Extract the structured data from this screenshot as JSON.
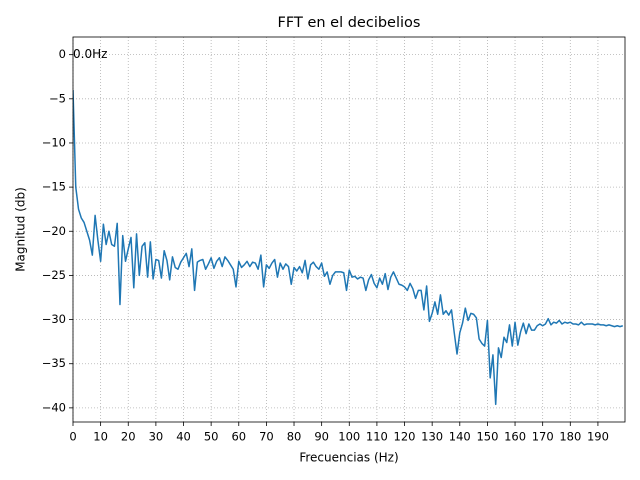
{
  "chart_data": {
    "type": "line",
    "title": "FFT en el decibelios",
    "xlabel": "Frecuencias (Hz)",
    "ylabel": "Magnitud (db)",
    "annotation": {
      "text": "0.0Hz",
      "x": 0,
      "y": 0
    },
    "grid": true,
    "xlim": [
      0,
      199.8
    ],
    "ylim": [
      -41.6,
      2.0
    ],
    "xticks": [
      0,
      10,
      20,
      30,
      40,
      50,
      60,
      70,
      80,
      90,
      100,
      110,
      120,
      130,
      140,
      150,
      160,
      170,
      180,
      190
    ],
    "yticks": [
      0,
      {
        "value": -5,
        "label": "−5"
      },
      {
        "value": -10,
        "label": "−10"
      },
      {
        "value": -15,
        "label": "−15"
      },
      {
        "value": -20,
        "label": "−20"
      },
      {
        "value": -25,
        "label": "−25"
      },
      {
        "value": -30,
        "label": "−30"
      },
      {
        "value": -35,
        "label": "−35"
      },
      {
        "value": -40,
        "label": "−40"
      }
    ],
    "x": [
      0,
      1,
      2,
      3,
      4,
      5,
      6,
      7,
      8,
      9,
      10,
      11,
      12,
      13,
      14,
      15,
      16,
      17,
      18,
      19,
      20,
      21,
      22,
      23,
      24,
      25,
      26,
      27,
      28,
      29,
      30,
      31,
      32,
      33,
      34,
      35,
      36,
      37,
      38,
      39,
      40,
      41,
      42,
      43,
      44,
      45,
      46,
      47,
      48,
      49,
      50,
      51,
      52,
      53,
      54,
      55,
      56,
      57,
      58,
      59,
      60,
      61,
      62,
      63,
      64,
      65,
      66,
      67,
      68,
      69,
      70,
      71,
      72,
      73,
      74,
      75,
      76,
      77,
      78,
      79,
      80,
      81,
      82,
      83,
      84,
      85,
      86,
      87,
      88,
      89,
      90,
      91,
      92,
      93,
      94,
      95,
      96,
      97,
      98,
      99,
      100,
      101,
      102,
      103,
      104,
      105,
      106,
      107,
      108,
      109,
      110,
      111,
      112,
      113,
      114,
      115,
      116,
      117,
      118,
      119,
      120,
      121,
      122,
      123,
      124,
      125,
      126,
      127,
      128,
      129,
      130,
      131,
      132,
      133,
      134,
      135,
      136,
      137,
      138,
      139,
      140,
      141,
      142,
      143,
      144,
      145,
      146,
      147,
      148,
      149,
      150,
      151,
      152,
      153,
      154,
      155,
      156,
      157,
      158,
      159,
      160,
      161,
      162,
      163,
      164,
      165,
      166,
      167,
      168,
      169,
      170,
      171,
      172,
      173,
      174,
      175,
      176,
      177,
      178,
      179,
      180,
      181,
      182,
      183,
      184,
      185,
      186,
      187,
      188,
      189,
      190,
      191,
      192,
      193,
      194,
      195,
      196,
      197,
      198,
      199
    ],
    "series": [
      {
        "color": "#1f77b4",
        "values": [
          -4,
          -15,
          -17.5,
          -18.5,
          -19,
          -20,
          -21,
          -22.7,
          -18.2,
          -21,
          -23.4,
          -19.2,
          -21.5,
          -20,
          -21.5,
          -21.7,
          -19.1,
          -28.3,
          -20.5,
          -23.4,
          -22,
          -20.7,
          -26.4,
          -20.3,
          -25,
          -21.7,
          -21.3,
          -25.2,
          -21.2,
          -25.4,
          -23.2,
          -23.3,
          -25.3,
          -22.2,
          -23.3,
          -25.5,
          -22.9,
          -24.1,
          -24.3,
          -23.5,
          -23,
          -22.5,
          -24,
          -22,
          -26.7,
          -23.5,
          -23.3,
          -23.2,
          -24.3,
          -23.7,
          -23,
          -24.2,
          -23.4,
          -23,
          -24,
          -22.9,
          -23.3,
          -23.8,
          -24.3,
          -26.3,
          -23.4,
          -24.1,
          -23.8,
          -23.4,
          -24,
          -23.5,
          -23.6,
          -24.3,
          -22.7,
          -26.3,
          -23.8,
          -24.2,
          -23.6,
          -23.2,
          -25.2,
          -23.6,
          -24.3,
          -23.7,
          -24,
          -26,
          -24.1,
          -24.5,
          -24,
          -24.7,
          -23.3,
          -25.4,
          -23.8,
          -23.5,
          -24,
          -24.3,
          -23.6,
          -25.1,
          -24.6,
          -26,
          -25,
          -24.6,
          -24.6,
          -24.6,
          -24.7,
          -26.7,
          -24.4,
          -25.2,
          -25.1,
          -25.4,
          -25.2,
          -25.3,
          -26.7,
          -25.5,
          -24.9,
          -25.9,
          -26.4,
          -25.3,
          -26,
          -24.8,
          -26.6,
          -25.2,
          -24.6,
          -25.3,
          -26,
          -26.1,
          -26.3,
          -26.7,
          -25.9,
          -26.5,
          -27.6,
          -26.7,
          -26.7,
          -28.9,
          -26.2,
          -30.2,
          -29.3,
          -28,
          -29.4,
          -27.2,
          -29.4,
          -29,
          -29.5,
          -28.9,
          -31.5,
          -33.9,
          -31.5,
          -30.4,
          -28.7,
          -30.1,
          -29.3,
          -29.4,
          -29.8,
          -32.2,
          -32.7,
          -33,
          -30.1,
          -36.6,
          -34,
          -39.6,
          -33.2,
          -34.3,
          -32,
          -32.6,
          -30.6,
          -33,
          -30.3,
          -32.9,
          -31.4,
          -30.4,
          -31.6,
          -30.5,
          -31.2,
          -31.2,
          -30.7,
          -30.5,
          -30.7,
          -30.5,
          -29.9,
          -30.6,
          -30.3,
          -30.4,
          -30.1,
          -30.5,
          -30.3,
          -30.4,
          -30.3,
          -30.5,
          -30.5,
          -30.6,
          -30.3,
          -30.6,
          -30.5,
          -30.5,
          -30.5,
          -30.6,
          -30.5,
          -30.6,
          -30.6,
          -30.7,
          -30.6,
          -30.7,
          -30.8,
          -30.7,
          -30.8,
          -30.7
        ]
      }
    ]
  }
}
